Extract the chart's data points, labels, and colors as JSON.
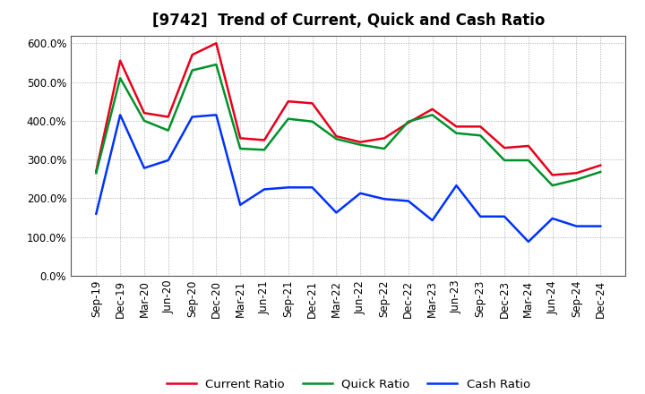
{
  "title": "[9742]  Trend of Current, Quick and Cash Ratio",
  "labels": [
    "Sep-19",
    "Dec-19",
    "Mar-20",
    "Jun-20",
    "Sep-20",
    "Dec-20",
    "Mar-21",
    "Jun-21",
    "Sep-21",
    "Dec-21",
    "Mar-22",
    "Jun-22",
    "Sep-22",
    "Dec-22",
    "Mar-23",
    "Jun-23",
    "Sep-23",
    "Dec-23",
    "Mar-24",
    "Jun-24",
    "Sep-24",
    "Dec-24"
  ],
  "current_ratio": [
    270,
    555,
    420,
    410,
    570,
    600,
    355,
    350,
    450,
    445,
    360,
    345,
    355,
    395,
    430,
    385,
    385,
    330,
    335,
    260,
    265,
    285
  ],
  "quick_ratio": [
    265,
    510,
    400,
    375,
    530,
    545,
    328,
    325,
    405,
    398,
    353,
    338,
    328,
    398,
    415,
    368,
    362,
    298,
    298,
    233,
    248,
    268
  ],
  "cash_ratio": [
    160,
    415,
    278,
    298,
    410,
    415,
    183,
    223,
    228,
    228,
    163,
    213,
    198,
    193,
    143,
    233,
    153,
    153,
    88,
    148,
    128,
    128
  ],
  "current_color": "#e8001c",
  "quick_color": "#00922a",
  "cash_color": "#0032ff",
  "ylim": [
    0,
    620
  ],
  "yticks": [
    0,
    100,
    200,
    300,
    400,
    500,
    600
  ],
  "background_color": "#ffffff",
  "grid_color": "#aaaaaa",
  "title_fontsize": 12,
  "axis_fontsize": 8.5,
  "legend_fontsize": 9.5,
  "linewidth": 1.8
}
